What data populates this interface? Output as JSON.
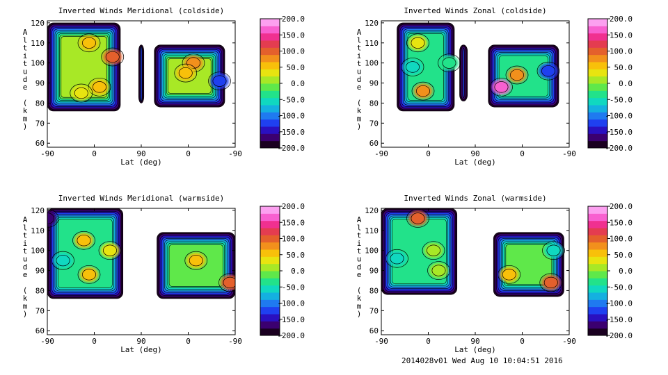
{
  "footer": "2014028v01 Wed Aug 10 10:04:51 2016",
  "colorbar": {
    "ticks": [
      "200.0",
      "150.0",
      "100.0",
      "50.0",
      "0.0",
      "-50.0",
      "-100.0",
      "-150.0",
      "-200.0"
    ],
    "colors": [
      "#1a0020",
      "#3b0070",
      "#2a10c0",
      "#1f40f0",
      "#1f7af0",
      "#14b0e0",
      "#10d8c0",
      "#22e28a",
      "#5fe84a",
      "#a8e826",
      "#e8e410",
      "#f8c00a",
      "#f2901c",
      "#e4602c",
      "#e43c50",
      "#f03090",
      "#f860d0",
      "#fca0f0"
    ]
  },
  "chart_data": [
    {
      "type": "heatmap",
      "title": "Inverted Winds Meridional (coldside)",
      "xlabel": "Lat (deg)",
      "ylabel": "Altitude (km)",
      "x_ticks": [
        "-90",
        "0",
        "90",
        "0",
        "-90"
      ],
      "y_ticks": [
        "60",
        "70",
        "80",
        "90",
        "100",
        "110",
        "120"
      ],
      "ylim": [
        58,
        121
      ],
      "colorbar_range": [
        -200,
        200
      ],
      "regions": [
        {
          "lat_range": [
            -90,
            50
          ],
          "alt_range": [
            76,
            120
          ],
          "level": 10
        },
        {
          "lat_range": [
            85,
            95
          ],
          "alt_range": [
            80,
            109
          ],
          "level": 4
        },
        {
          "lat_range": [
            115,
            250
          ],
          "alt_range": [
            78,
            109
          ],
          "level": 10
        }
      ],
      "features": [
        {
          "lat": -10,
          "alt": 110,
          "level": 11
        },
        {
          "lat": 35,
          "alt": 103,
          "level": 13
        },
        {
          "lat": 10,
          "alt": 88,
          "level": 11
        },
        {
          "lat": -25,
          "alt": 85,
          "level": 10
        },
        {
          "lat": 190,
          "alt": 100,
          "level": 12
        },
        {
          "lat": 175,
          "alt": 95,
          "level": 11
        },
        {
          "lat": 240,
          "alt": 91,
          "level": 3
        }
      ]
    },
    {
      "type": "heatmap",
      "title": "Inverted Winds Zonal (coldside)",
      "xlabel": "Lat (deg)",
      "ylabel": "Altitude (km)",
      "x_ticks": [
        "-90",
        "0",
        "90",
        "0",
        "-90"
      ],
      "y_ticks": [
        "60",
        "70",
        "80",
        "90",
        "100",
        "110",
        "120"
      ],
      "ylim": [
        58,
        121
      ],
      "colorbar_range": [
        -200,
        200
      ],
      "regions": [
        {
          "lat_range": [
            -60,
            50
          ],
          "alt_range": [
            76,
            120
          ],
          "level": 8
        },
        {
          "lat_range": [
            60,
            75
          ],
          "alt_range": [
            81,
            109
          ],
          "level": 4
        },
        {
          "lat_range": [
            115,
            250
          ],
          "alt_range": [
            78,
            109
          ],
          "level": 8
        }
      ],
      "features": [
        {
          "lat": -20,
          "alt": 110,
          "level": 10
        },
        {
          "lat": -30,
          "alt": 98,
          "level": 6
        },
        {
          "lat": 40,
          "alt": 100,
          "level": 7
        },
        {
          "lat": -10,
          "alt": 86,
          "level": 12
        },
        {
          "lat": 140,
          "alt": 88,
          "level": 16
        },
        {
          "lat": 170,
          "alt": 94,
          "level": 12
        },
        {
          "lat": 230,
          "alt": 96,
          "level": 3
        }
      ]
    },
    {
      "type": "heatmap",
      "title": "Inverted Winds Meridional (warmside)",
      "xlabel": "Lat (deg)",
      "ylabel": "Altitude (km)",
      "x_ticks": [
        "-90",
        "0",
        "90",
        "0",
        "-90"
      ],
      "y_ticks": [
        "60",
        "70",
        "80",
        "90",
        "100",
        "110",
        "120"
      ],
      "ylim": [
        58,
        121
      ],
      "colorbar_range": [
        -200,
        200
      ],
      "regions": [
        {
          "lat_range": [
            -90,
            55
          ],
          "alt_range": [
            76,
            121
          ],
          "level": 8
        },
        {
          "lat_range": [
            120,
            270
          ],
          "alt_range": [
            76,
            109
          ],
          "level": 9
        }
      ],
      "features": [
        {
          "lat": -90,
          "alt": 116,
          "level": 1
        },
        {
          "lat": -20,
          "alt": 105,
          "level": 11
        },
        {
          "lat": -60,
          "alt": 95,
          "level": 6
        },
        {
          "lat": 30,
          "alt": 100,
          "level": 10
        },
        {
          "lat": -10,
          "alt": 88,
          "level": 11
        },
        {
          "lat": 195,
          "alt": 95,
          "level": 11
        },
        {
          "lat": 260,
          "alt": 84,
          "level": 13
        }
      ]
    },
    {
      "type": "heatmap",
      "title": "Inverted Winds Zonal (warmside)",
      "xlabel": "Lat (deg)",
      "ylabel": "Altitude (km)",
      "x_ticks": [
        "-90",
        "0",
        "90",
        "0",
        "-90"
      ],
      "y_ticks": [
        "60",
        "70",
        "80",
        "90",
        "100",
        "110",
        "120"
      ],
      "ylim": [
        58,
        121
      ],
      "colorbar_range": [
        -200,
        200
      ],
      "regions": [
        {
          "lat_range": [
            -90,
            55
          ],
          "alt_range": [
            78,
            121
          ],
          "level": 8
        },
        {
          "lat_range": [
            125,
            260
          ],
          "alt_range": [
            77,
            109
          ],
          "level": 9
        }
      ],
      "features": [
        {
          "lat": -20,
          "alt": 116,
          "level": 13
        },
        {
          "lat": -60,
          "alt": 96,
          "level": 6
        },
        {
          "lat": 10,
          "alt": 100,
          "level": 9
        },
        {
          "lat": 20,
          "alt": 90,
          "level": 9
        },
        {
          "lat": 155,
          "alt": 88,
          "level": 11
        },
        {
          "lat": 235,
          "alt": 84,
          "level": 13
        },
        {
          "lat": 240,
          "alt": 100,
          "level": 6
        }
      ]
    }
  ]
}
